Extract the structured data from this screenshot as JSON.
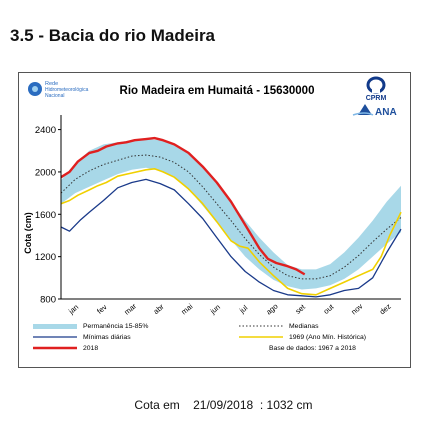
{
  "page": {
    "section_title": "3.5 - Bacia do rio Madeira",
    "footer": {
      "label": "Cota em",
      "date": "21/09/2018",
      "value": ": 1032 cm"
    }
  },
  "logos": {
    "rede_line1": "Rede",
    "rede_line2": "Hidrometeorológica",
    "rede_line3": "Nacional",
    "cprm": "CPRM",
    "ana": "ANA"
  },
  "colors": {
    "band": "#a8d8e8",
    "minimas": "#1a3a8a",
    "year2018": "#e02020",
    "year1969": "#f0d000",
    "medianas": "#333333"
  },
  "chart_data": {
    "type": "line",
    "title": "Rio Madeira em Humaitá - 15630000",
    "ylabel": "Cota (cm)",
    "ylim": [
      800,
      2500
    ],
    "yticks": [
      800,
      1200,
      1600,
      2000,
      2400
    ],
    "months": [
      "jan",
      "fev",
      "mar",
      "abr",
      "mai",
      "jun",
      "jul",
      "ago",
      "set",
      "out",
      "nov",
      "dez"
    ],
    "grid": false,
    "x_unit": "month index (0 = 1 jan, 12 = 31 dez)",
    "series": [
      {
        "name": "Permanência 15-85%",
        "kind": "band",
        "x": [
          0,
          0.5,
          1,
          1.5,
          2,
          2.5,
          3,
          3.5,
          4,
          4.5,
          5,
          5.5,
          6,
          6.5,
          7,
          7.5,
          8,
          8.5,
          9,
          9.5,
          10,
          10.5,
          11,
          11.5,
          12
        ],
        "upper": [
          1920,
          2080,
          2200,
          2260,
          2280,
          2300,
          2310,
          2300,
          2260,
          2180,
          2060,
          1900,
          1720,
          1540,
          1380,
          1240,
          1120,
          1080,
          1080,
          1130,
          1240,
          1380,
          1540,
          1720,
          1870
        ],
        "lower": [
          1700,
          1800,
          1860,
          1920,
          1980,
          2020,
          2040,
          2010,
          1950,
          1840,
          1680,
          1520,
          1360,
          1200,
          1080,
          980,
          920,
          890,
          900,
          930,
          990,
          1080,
          1200,
          1320,
          1430
        ]
      },
      {
        "name": "Medianas",
        "kind": "dotted",
        "x": [
          0,
          0.5,
          1,
          1.5,
          2,
          2.5,
          3,
          3.5,
          4,
          4.5,
          5,
          5.5,
          6,
          6.5,
          7,
          7.5,
          8,
          8.5,
          9,
          9.5,
          10,
          10.5,
          11,
          11.5,
          12
        ],
        "values": [
          1800,
          1930,
          2010,
          2070,
          2110,
          2150,
          2160,
          2140,
          2090,
          2000,
          1860,
          1700,
          1540,
          1370,
          1220,
          1100,
          1020,
          990,
          990,
          1020,
          1100,
          1210,
          1340,
          1460,
          1570
        ]
      },
      {
        "name": "Mínimas diárias",
        "kind": "line",
        "x": [
          0,
          0.3,
          0.7,
          1,
          1.5,
          2,
          2.5,
          3,
          3.5,
          4,
          4.5,
          5,
          5.5,
          6,
          6.5,
          7,
          7.5,
          8,
          8.5,
          9,
          9.5,
          10,
          10.5,
          11,
          11.5,
          12
        ],
        "values": [
          1480,
          1440,
          1550,
          1620,
          1730,
          1850,
          1900,
          1930,
          1890,
          1830,
          1700,
          1560,
          1380,
          1200,
          1060,
          960,
          880,
          840,
          830,
          820,
          840,
          880,
          900,
          1000,
          1240,
          1460
        ]
      },
      {
        "name": "1969 (Ano Mín. Histórica)",
        "kind": "line",
        "x": [
          0,
          0.3,
          0.6,
          1,
          1.3,
          1.6,
          2,
          2.5,
          3,
          3.3,
          3.6,
          4,
          4.5,
          5,
          5.5,
          6,
          6.3,
          6.6,
          7,
          7.5,
          8,
          8.5,
          9,
          9.5,
          10,
          10.5,
          11,
          11.3,
          11.6,
          12
        ],
        "values": [
          1700,
          1730,
          1780,
          1830,
          1870,
          1900,
          1960,
          1990,
          2020,
          2030,
          2000,
          1950,
          1840,
          1700,
          1530,
          1350,
          1300,
          1280,
          1150,
          1020,
          900,
          850,
          840,
          900,
          960,
          1020,
          1080,
          1200,
          1400,
          1620
        ]
      },
      {
        "name": "2018",
        "kind": "line",
        "x": [
          0,
          0.3,
          0.6,
          1,
          1.3,
          1.6,
          2,
          2.3,
          2.6,
          3,
          3.3,
          3.6,
          4,
          4.5,
          5,
          5.5,
          6,
          6.5,
          7,
          7.3,
          7.6,
          8,
          8.3,
          8.6
        ],
        "values": [
          1950,
          2000,
          2100,
          2180,
          2200,
          2240,
          2270,
          2280,
          2300,
          2310,
          2320,
          2300,
          2260,
          2180,
          2050,
          1900,
          1720,
          1500,
          1280,
          1180,
          1140,
          1110,
          1080,
          1032
        ]
      }
    ],
    "legend": [
      {
        "label": "Permanência 15-85%",
        "kind": "band"
      },
      {
        "label": "Medianas",
        "kind": "dotted"
      },
      {
        "label": "Mínimas diárias",
        "kind": "line-blue"
      },
      {
        "label": "1969 (Ano Mín. Histórica)",
        "kind": "line-yellow"
      },
      {
        "label": "2018",
        "kind": "line-red"
      },
      {
        "label": "Base de dados: 1967 a 2018",
        "kind": "text"
      }
    ],
    "legend_position": "bottom"
  }
}
